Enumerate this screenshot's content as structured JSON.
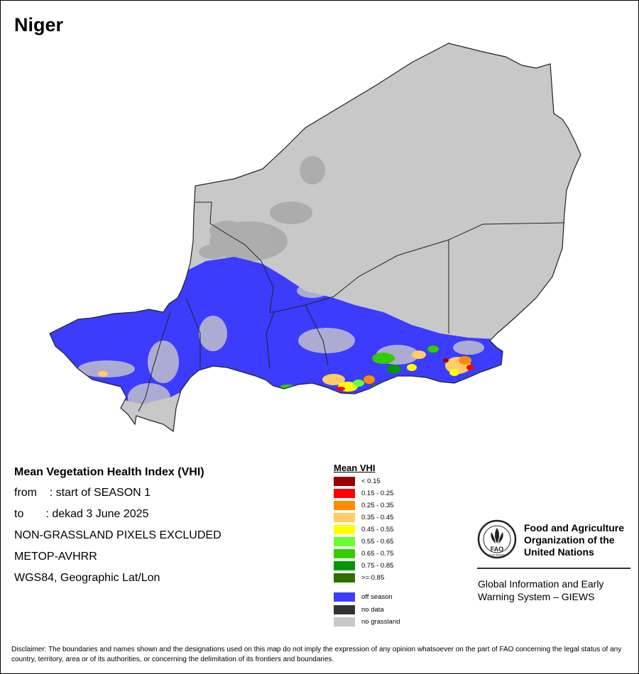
{
  "map": {
    "title": "Niger"
  },
  "info": {
    "title": "Mean Vegetation Health Index (VHI)",
    "from": "from    : start of SEASON 1",
    "to": "to       : dekad 3 June 2025",
    "exclusion": "NON-GRASSLAND PIXELS EXCLUDED",
    "sensor": "METOP-AVHRR",
    "projection": "WGS84, Geographic Lat/Lon"
  },
  "legend": {
    "title": "Mean VHI",
    "classes": [
      {
        "label": "< 0.15",
        "color": "#990000"
      },
      {
        "label": "0.15 - 0.25",
        "color": "#ff0000"
      },
      {
        "label": "0.25 - 0.35",
        "color": "#ff8c00"
      },
      {
        "label": "0.35 - 0.45",
        "color": "#ffcc66"
      },
      {
        "label": "0.45 - 0.55",
        "color": "#ffff00"
      },
      {
        "label": "0.55 - 0.65",
        "color": "#66ff33"
      },
      {
        "label": "0.65 - 0.75",
        "color": "#33cc00"
      },
      {
        "label": "0.75 - 0.85",
        "color": "#009900"
      },
      {
        "label": ">= 0.85",
        "color": "#2d7000"
      }
    ],
    "other": [
      {
        "label": "off season",
        "color": "#3c3cff"
      },
      {
        "label": "no data",
        "color": "#333333"
      },
      {
        "label": "no grassland",
        "color": "#c8c8c8"
      }
    ]
  },
  "organization": {
    "line1": "Food and Agriculture",
    "line2": "Organization of the",
    "line3": "United Nations",
    "emblem_text": "FAO",
    "emblem_motto": "FIAT PANIS",
    "system_line1": "Global Information and Early",
    "system_line2": "Warning System – GIEWS"
  },
  "disclaimer": "Disclaimer: The boundaries and names shown and the designations used on this map do not imply the expression of any opinion whatsoever on the part of FAO concerning the legal status of any country, territory, area or of its authorities, or concerning the delimitation of its frontiers and boundaries."
}
